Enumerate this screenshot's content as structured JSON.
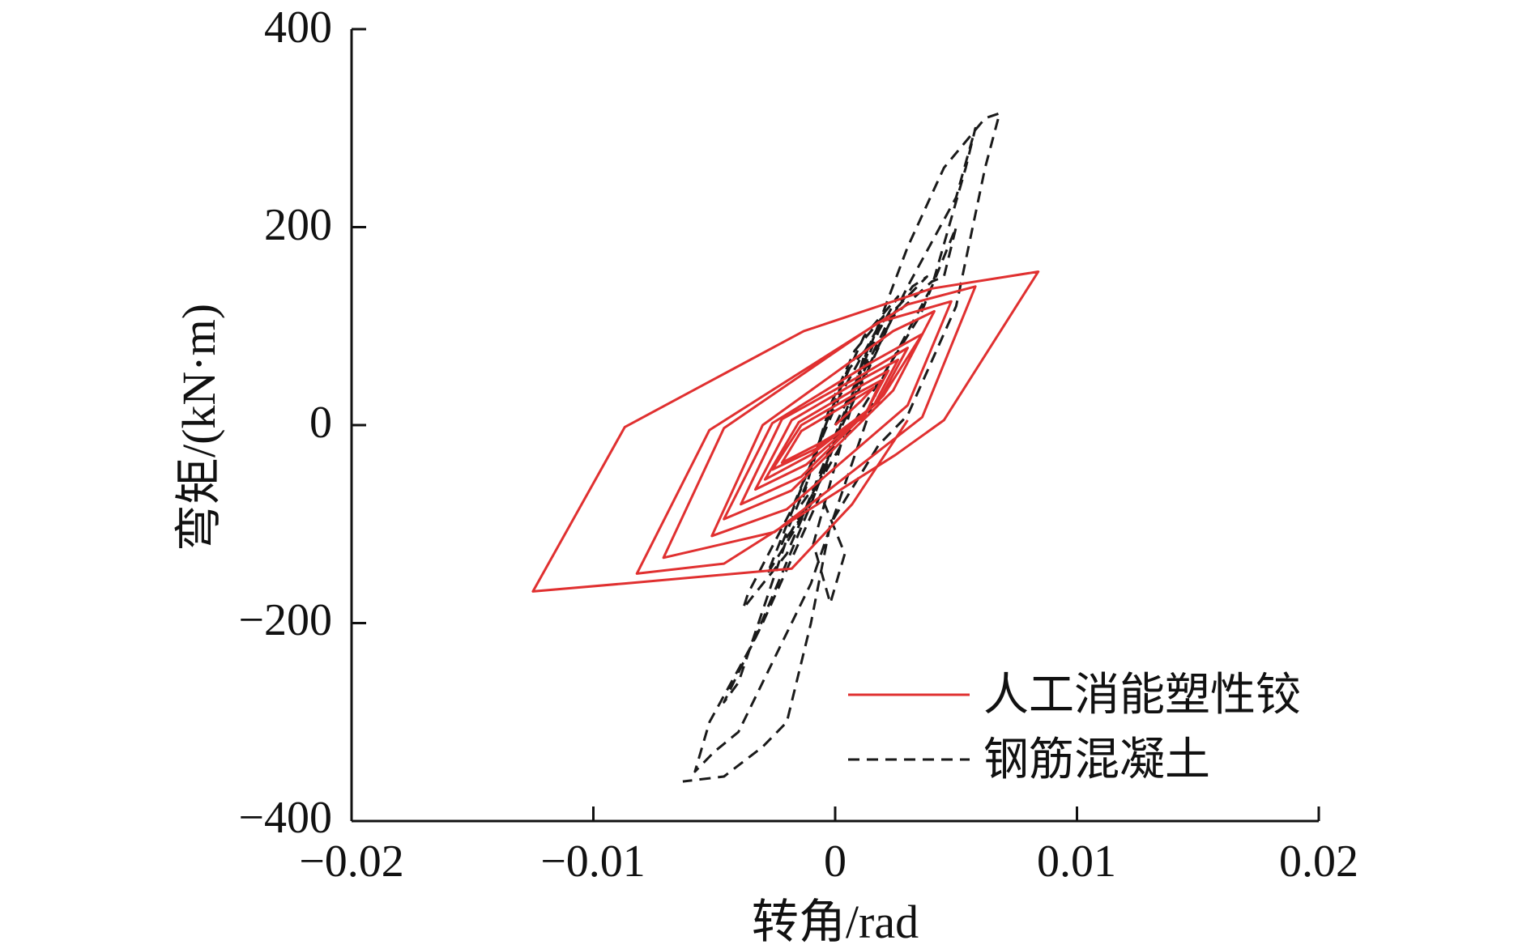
{
  "chart_data": {
    "type": "line",
    "title": "",
    "xlabel": "转角/rad",
    "ylabel": "弯矩/(kN·m)",
    "xlim": [
      -0.02,
      0.02
    ],
    "ylim": [
      -400,
      400
    ],
    "x_ticks": [
      -0.02,
      -0.01,
      0,
      0.01,
      0.02
    ],
    "x_tick_labels": [
      "−0.02",
      "−0.01",
      "0",
      "0.01",
      "0.02"
    ],
    "y_ticks": [
      -400,
      -200,
      0,
      200,
      400
    ],
    "y_tick_labels": [
      "−400",
      "−200",
      "0",
      "200",
      "400"
    ],
    "grid": false,
    "legend_position": "bottom-right",
    "series": [
      {
        "name": "人工消能塑性铰",
        "color": "#e03030",
        "style": "solid",
        "points": [
          [
            0,
            0
          ],
          [
            0.0011,
            25
          ],
          [
            0.0016,
            38
          ],
          [
            0.0004,
            20
          ],
          [
            -0.0014,
            -6
          ],
          [
            -0.0022,
            -38
          ],
          [
            -0.0006,
            -18
          ],
          [
            0.0012,
            8
          ],
          [
            0.0019,
            45
          ],
          [
            0.0006,
            28
          ],
          [
            -0.0014,
            0
          ],
          [
            -0.0026,
            -45
          ],
          [
            -0.0008,
            -24
          ],
          [
            0.0013,
            14
          ],
          [
            0.0022,
            55
          ],
          [
            0.0008,
            36
          ],
          [
            -0.0015,
            3
          ],
          [
            -0.0029,
            -55
          ],
          [
            -0.001,
            -30
          ],
          [
            0.0016,
            20
          ],
          [
            0.0026,
            66
          ],
          [
            0.001,
            45
          ],
          [
            -0.0018,
            5
          ],
          [
            -0.0033,
            -65
          ],
          [
            -0.0012,
            -40
          ],
          [
            0.0018,
            24
          ],
          [
            0.003,
            78
          ],
          [
            0.0012,
            52
          ],
          [
            -0.0022,
            6
          ],
          [
            -0.0039,
            -80
          ],
          [
            -0.0014,
            -52
          ],
          [
            0.002,
            30
          ],
          [
            0.0036,
            92
          ],
          [
            0.0014,
            62
          ],
          [
            -0.0026,
            2
          ],
          [
            -0.0046,
            -95
          ],
          [
            -0.0018,
            -66
          ],
          [
            0.0024,
            35
          ],
          [
            0.0041,
            115
          ],
          [
            0.0024,
            95
          ],
          [
            -0.003,
            0
          ],
          [
            -0.0051,
            -112
          ],
          [
            -0.002,
            -85
          ],
          [
            0.003,
            20
          ],
          [
            0.0048,
            125
          ],
          [
            0.0018,
            104
          ],
          [
            -0.0046,
            -3
          ],
          [
            -0.0071,
            -134
          ],
          [
            -0.0025,
            -108
          ],
          [
            0.0036,
            8
          ],
          [
            0.0058,
            140
          ],
          [
            0.003,
            122
          ],
          [
            -0.0052,
            -5
          ],
          [
            -0.0082,
            -150
          ],
          [
            -0.0046,
            -140
          ],
          [
            0.0025,
            -30
          ],
          [
            0.0045,
            5
          ],
          [
            0.0084,
            155
          ],
          [
            0.004,
            138
          ],
          [
            -0.0013,
            95
          ],
          [
            -0.0087,
            -2
          ],
          [
            -0.0125,
            -168
          ],
          [
            -0.0087,
            -160
          ],
          [
            -0.0018,
            -145
          ],
          [
            0.0007,
            -80
          ],
          [
            0.003,
            5
          ]
        ]
      },
      {
        "name": "钢筋混凝土",
        "color": "#1a1a1a",
        "style": "dashed",
        "points": [
          [
            0,
            0
          ],
          [
            0.0008,
            40
          ],
          [
            0.0014,
            80
          ],
          [
            0.0005,
            55
          ],
          [
            -0.0004,
            0
          ],
          [
            -0.001,
            -45
          ],
          [
            -0.0014,
            -80
          ],
          [
            -0.0005,
            -50
          ],
          [
            0.0005,
            15
          ],
          [
            0.0012,
            70
          ],
          [
            0.002,
            110
          ],
          [
            0.0008,
            75
          ],
          [
            -0.0002,
            20
          ],
          [
            -0.0012,
            -60
          ],
          [
            -0.0022,
            -120
          ],
          [
            -0.001,
            -80
          ],
          [
            0.0004,
            10
          ],
          [
            0.0018,
            95
          ],
          [
            0.0026,
            130
          ],
          [
            0.0012,
            90
          ],
          [
            0.0,
            25
          ],
          [
            -0.0015,
            -70
          ],
          [
            -0.0028,
            -150
          ],
          [
            -0.0014,
            -95
          ],
          [
            0.0005,
            20
          ],
          [
            0.0022,
            105
          ],
          [
            0.0032,
            140
          ],
          [
            0.0038,
            150
          ],
          [
            0.0018,
            100
          ],
          [
            0.0002,
            30
          ],
          [
            -0.0018,
            -85
          ],
          [
            -0.0036,
            -170
          ],
          [
            -0.0038,
            -185
          ],
          [
            -0.002,
            -130
          ],
          [
            0.0002,
            -5
          ],
          [
            0.0024,
            110
          ],
          [
            0.004,
            145
          ],
          [
            0.0045,
            150
          ],
          [
            0.005,
            200
          ],
          [
            0.0035,
            110
          ],
          [
            0.0012,
            20
          ],
          [
            -0.002,
            -115
          ],
          [
            -0.004,
            -260
          ],
          [
            -0.0046,
            -280
          ],
          [
            -0.003,
            -200
          ],
          [
            -0.0006,
            -70
          ],
          [
            0.0004,
            -130
          ],
          [
            -0.0002,
            -180
          ],
          [
            -0.0009,
            -120
          ],
          [
            0.0008,
            30
          ],
          [
            0.003,
            140
          ],
          [
            0.005,
            230
          ],
          [
            0.0058,
            300
          ],
          [
            0.0054,
            260
          ],
          [
            0.004,
            140
          ],
          [
            0.0018,
            40
          ],
          [
            -0.001,
            -160
          ],
          [
            -0.004,
            -310
          ],
          [
            -0.005,
            -330
          ],
          [
            -0.0058,
            -350
          ],
          [
            -0.0052,
            -300
          ],
          [
            -0.0034,
            -220
          ],
          [
            -0.001,
            -80
          ],
          [
            0.001,
            50
          ],
          [
            0.003,
            180
          ],
          [
            0.0045,
            260
          ],
          [
            0.0062,
            310
          ],
          [
            0.0068,
            315
          ],
          [
            0.0062,
            260
          ],
          [
            0.005,
            120
          ],
          [
            0.003,
            10
          ],
          [
            0.0018,
            -20
          ],
          [
            -0.0002,
            -100
          ],
          [
            -0.001,
            -200
          ],
          [
            -0.002,
            -300
          ],
          [
            -0.003,
            -325
          ],
          [
            -0.0046,
            -355
          ],
          [
            -0.0063,
            -360
          ]
        ]
      }
    ]
  }
}
